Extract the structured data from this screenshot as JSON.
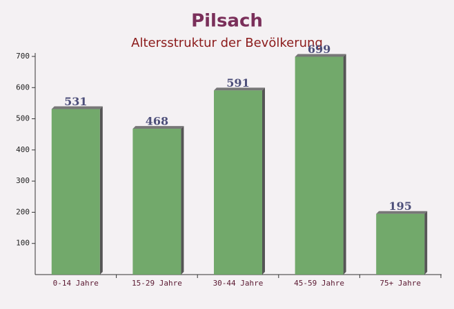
{
  "chart_data": {
    "type": "bar",
    "title": "Pilsach",
    "subtitle": "Altersstruktur der Bevölkerung",
    "categories": [
      "0-14 Jahre",
      "15-29 Jahre",
      "30-44 Jahre",
      "45-59 Jahre",
      "75+ Jahre"
    ],
    "values": [
      531,
      468,
      591,
      699,
      195
    ],
    "color": "#6aa463",
    "ylim": [
      0,
      700
    ],
    "yticks": [
      100,
      200,
      300,
      400,
      500,
      600,
      700
    ],
    "grid": false
  }
}
